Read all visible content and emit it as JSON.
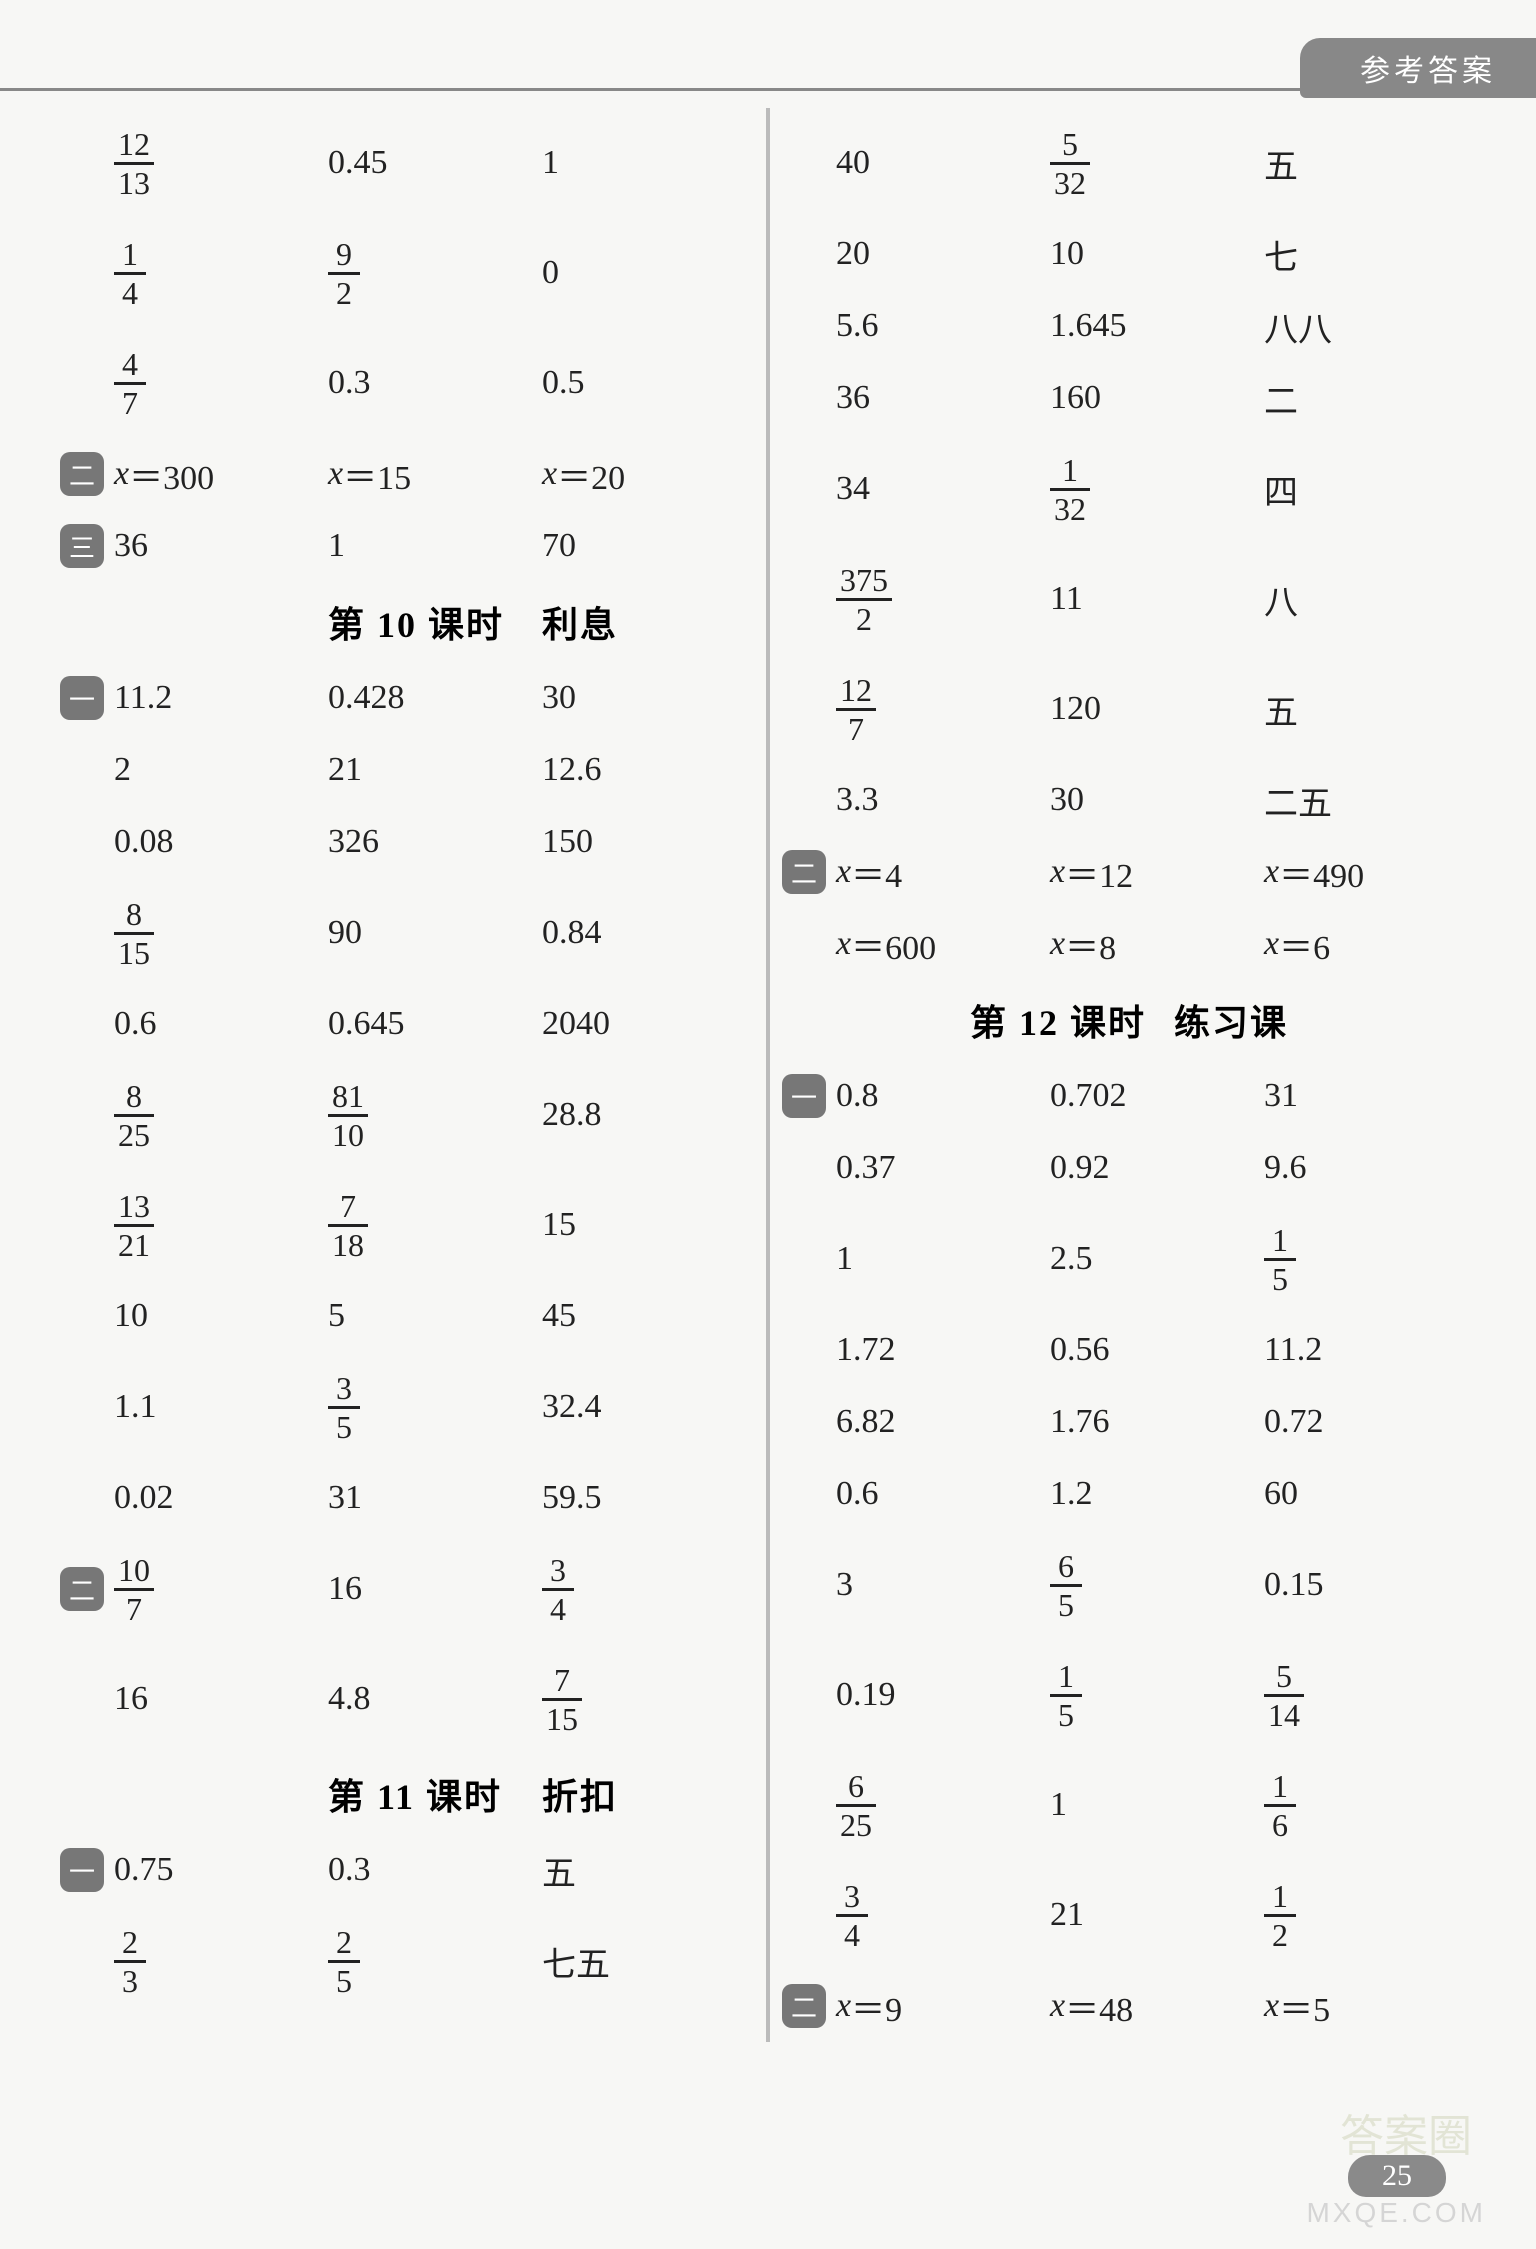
{
  "header_tab": "参考答案",
  "page_number": "25",
  "watermark_brand": "答案圈",
  "watermark_url": "MXQE.COM",
  "badges": {
    "one": "一",
    "two": "二",
    "three": "三"
  },
  "left": {
    "top": [
      {
        "c": [
          {
            "f": [
              12,
              13
            ]
          },
          "0.45",
          "1"
        ],
        "tall": true
      },
      {
        "c": [
          {
            "f": [
              1,
              4
            ]
          },
          {
            "f": [
              9,
              2
            ]
          },
          "0"
        ],
        "tall": true
      },
      {
        "c": [
          {
            "f": [
              4,
              7
            ]
          },
          "0.3",
          "0.5"
        ],
        "tall": true
      },
      {
        "c": [
          {
            "eq": [
              "x",
              "300"
            ]
          },
          {
            "eq": [
              "x",
              "15"
            ]
          },
          {
            "eq": [
              "x",
              "20"
            ]
          }
        ],
        "badge": "two"
      },
      {
        "c": [
          "36",
          "1",
          "70"
        ],
        "badge": "three"
      }
    ],
    "heading1": {
      "a": "第 10 课时",
      "b": "利息"
    },
    "sec10": [
      {
        "c": [
          "11.2",
          "0.428",
          "30"
        ],
        "badge": "one"
      },
      {
        "c": [
          "2",
          "21",
          "12.6"
        ]
      },
      {
        "c": [
          "0.08",
          "326",
          "150"
        ]
      },
      {
        "c": [
          {
            "f": [
              8,
              15
            ]
          },
          "90",
          "0.84"
        ],
        "tall": true
      },
      {
        "c": [
          "0.6",
          "0.645",
          "2040"
        ]
      },
      {
        "c": [
          {
            "f": [
              8,
              25
            ]
          },
          {
            "f": [
              81,
              10
            ]
          },
          "28.8"
        ],
        "tall": true
      },
      {
        "c": [
          {
            "f": [
              13,
              21
            ]
          },
          {
            "f": [
              7,
              18
            ]
          },
          "15"
        ],
        "tall": true
      },
      {
        "c": [
          "10",
          "5",
          "45"
        ]
      },
      {
        "c": [
          "1.1",
          {
            "f": [
              3,
              5
            ]
          },
          "32.4"
        ],
        "tall": true
      },
      {
        "c": [
          "0.02",
          "31",
          "59.5"
        ]
      },
      {
        "c": [
          {
            "f": [
              10,
              7
            ]
          },
          "16",
          {
            "f": [
              3,
              4
            ]
          }
        ],
        "badge": "two",
        "tall": true
      },
      {
        "c": [
          "16",
          "4.8",
          {
            "f": [
              7,
              15
            ]
          }
        ],
        "tall": true
      }
    ],
    "heading2": {
      "a": "第 11 课时",
      "b": "折扣"
    },
    "sec11": [
      {
        "c": [
          "0.75",
          "0.3",
          "五"
        ],
        "badge": "one"
      },
      {
        "c": [
          {
            "f": [
              2,
              3
            ]
          },
          {
            "f": [
              2,
              5
            ]
          },
          "七五"
        ],
        "tall": true
      }
    ]
  },
  "right": {
    "top": [
      {
        "c": [
          "40",
          {
            "f": [
              5,
              32
            ]
          },
          "五"
        ],
        "tall": true
      },
      {
        "c": [
          "20",
          "10",
          "七"
        ]
      },
      {
        "c": [
          "5.6",
          "1.645",
          "八八"
        ]
      },
      {
        "c": [
          "36",
          "160",
          "二"
        ]
      },
      {
        "c": [
          "34",
          {
            "f": [
              1,
              32
            ]
          },
          "四"
        ],
        "tall": true
      },
      {
        "c": [
          {
            "f": [
              375,
              2
            ]
          },
          "11",
          "八"
        ],
        "tall": true
      },
      {
        "c": [
          {
            "f": [
              12,
              7
            ]
          },
          "120",
          "五"
        ],
        "tall": true
      },
      {
        "c": [
          "3.3",
          "30",
          "二五"
        ]
      },
      {
        "c": [
          {
            "eq": [
              "x",
              "4"
            ]
          },
          {
            "eq": [
              "x",
              "12"
            ]
          },
          {
            "eq": [
              "x",
              "490"
            ]
          }
        ],
        "badge": "two"
      },
      {
        "c": [
          {
            "eq": [
              "x",
              "600"
            ]
          },
          {
            "eq": [
              "x",
              "8"
            ]
          },
          {
            "eq": [
              "x",
              "6"
            ]
          }
        ]
      }
    ],
    "heading12": {
      "a": "第 12 课时",
      "b": "练习课"
    },
    "sec12": [
      {
        "c": [
          "0.8",
          "0.702",
          "31"
        ],
        "badge": "one"
      },
      {
        "c": [
          "0.37",
          "0.92",
          "9.6"
        ]
      },
      {
        "c": [
          "1",
          "2.5",
          {
            "f": [
              1,
              5
            ]
          }
        ],
        "tall": true
      },
      {
        "c": [
          "1.72",
          "0.56",
          "11.2"
        ]
      },
      {
        "c": [
          "6.82",
          "1.76",
          "0.72"
        ]
      },
      {
        "c": [
          "0.6",
          "1.2",
          "60"
        ]
      },
      {
        "c": [
          "3",
          {
            "f": [
              6,
              5
            ]
          },
          "0.15"
        ],
        "tall": true
      },
      {
        "c": [
          "0.19",
          {
            "f": [
              1,
              5
            ]
          },
          {
            "f": [
              5,
              14
            ]
          }
        ],
        "tall": true
      },
      {
        "c": [
          {
            "f": [
              6,
              25
            ]
          },
          "1",
          {
            "f": [
              1,
              6
            ]
          }
        ],
        "tall": true
      },
      {
        "c": [
          {
            "f": [
              3,
              4
            ]
          },
          "21",
          {
            "f": [
              1,
              2
            ]
          }
        ],
        "tall": true
      },
      {
        "c": [
          {
            "eq": [
              "x",
              "9"
            ]
          },
          {
            "eq": [
              "x",
              "48"
            ]
          },
          {
            "eq": [
              "x",
              "5"
            ]
          }
        ],
        "badge": "two"
      }
    ]
  }
}
